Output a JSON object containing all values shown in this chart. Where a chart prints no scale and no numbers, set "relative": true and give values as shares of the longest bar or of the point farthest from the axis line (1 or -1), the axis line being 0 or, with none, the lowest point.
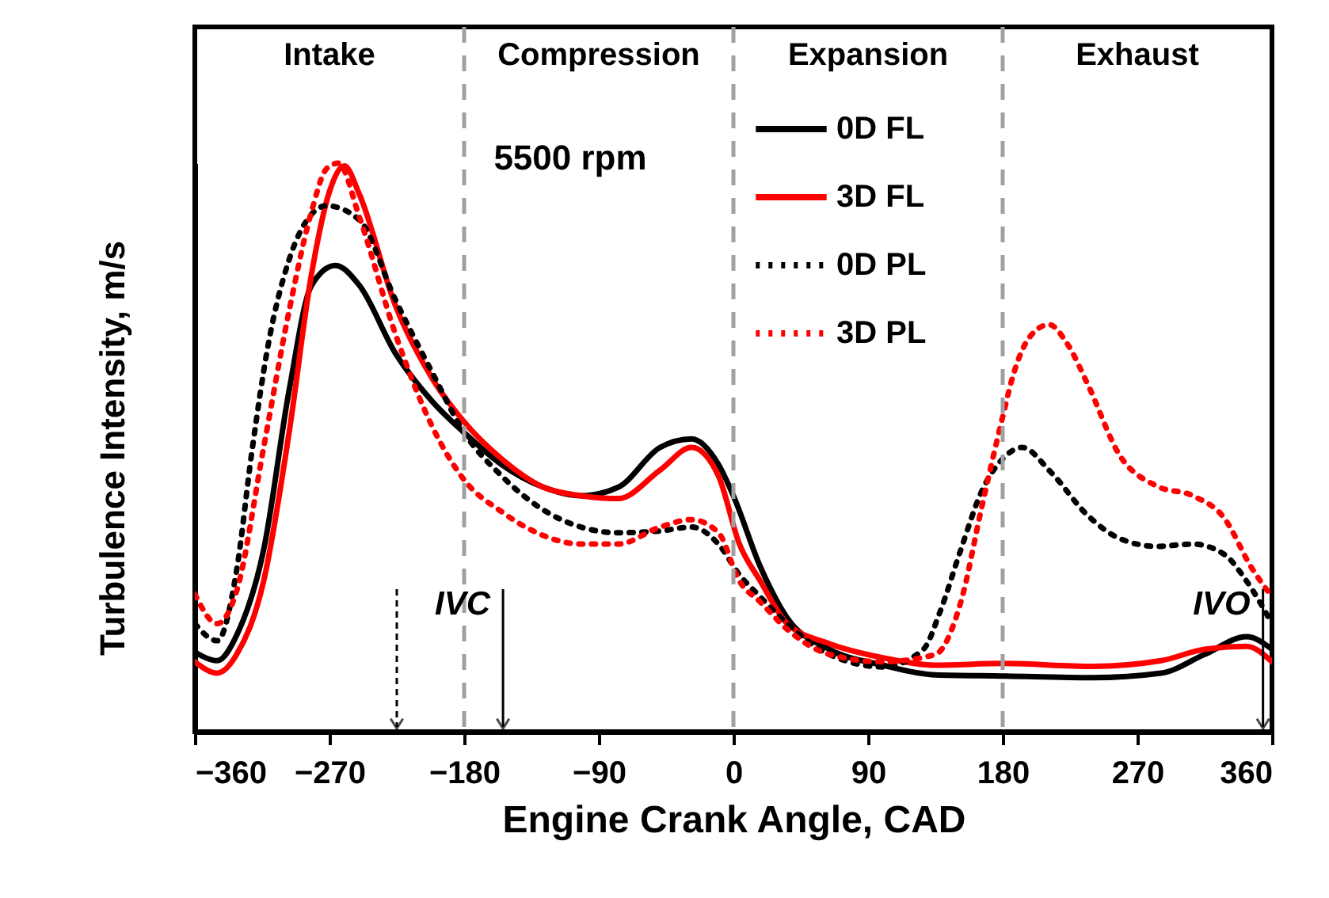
{
  "chart_data": {
    "type": "line",
    "relative": true,
    "xlabel": "Engine Crank Angle, CAD",
    "ylabel": "Turbulence Intensity, m/s",
    "xlim": [
      -360,
      360
    ],
    "xticks": [
      -360,
      -270,
      -180,
      -90,
      0,
      90,
      180,
      270,
      360
    ],
    "legend": "top",
    "grid": false,
    "annotations": [
      "Intake",
      "Compression",
      "Expansion",
      "Exhaust",
      "5500 rpm"
    ],
    "ref_lines": [
      {
        "axis": "x",
        "value": -180,
        "color": "#a0a0a0",
        "line_style": "dashed"
      },
      {
        "axis": "x",
        "value": 0,
        "color": "#a0a0a0",
        "line_style": "dashed"
      },
      {
        "axis": "x",
        "value": 180,
        "color": "#a0a0a0",
        "line_style": "dashed"
      },
      {
        "axis": "x",
        "value": -225,
        "color": "#000000",
        "line_style": "dashed"
      },
      {
        "axis": "x",
        "value": -154,
        "color": "#000000",
        "line_style": "solid",
        "label": "IVC"
      },
      {
        "axis": "x",
        "value": 354,
        "color": "#000000",
        "line_style": "solid",
        "label": "IVO"
      }
    ],
    "series": [
      {
        "name": "0D FL",
        "color": "#000000",
        "line_style": "solid",
        "x": [
          -360,
          -345,
          -332,
          -314,
          -297,
          -282,
          -266,
          -250,
          -226,
          -201,
          -180,
          -155,
          -127,
          -102,
          -77,
          -49,
          -28,
          -10,
          0,
          18,
          36,
          64,
          100,
          135,
          180,
          240,
          286,
          315,
          343,
          360
        ],
        "values": [
          0.14,
          0.125,
          0.17,
          0.32,
          0.6,
          0.785,
          0.82,
          0.785,
          0.666,
          0.58,
          0.526,
          0.47,
          0.43,
          0.415,
          0.43,
          0.5,
          0.515,
          0.47,
          0.415,
          0.29,
          0.2,
          0.145,
          0.117,
          0.1,
          0.098,
          0.095,
          0.103,
          0.136,
          0.167,
          0.145
        ]
      },
      {
        "name": "3D FL",
        "color": "#ff0000",
        "line_style": "solid",
        "x": [
          -360,
          -345,
          -332,
          -314,
          -297,
          -282,
          -270,
          -260,
          -250,
          -226,
          -201,
          -180,
          -155,
          -127,
          -102,
          -77,
          -49,
          -28,
          -10,
          4,
          18,
          36,
          64,
          100,
          135,
          180,
          240,
          286,
          315,
          343,
          360
        ],
        "values": [
          0.123,
          0.103,
          0.136,
          0.265,
          0.526,
          0.805,
          0.95,
          0.995,
          0.945,
          0.75,
          0.62,
          0.545,
          0.48,
          0.43,
          0.415,
          0.41,
          0.46,
          0.5,
          0.45,
          0.33,
          0.265,
          0.19,
          0.155,
          0.13,
          0.117,
          0.12,
          0.115,
          0.125,
          0.145,
          0.15,
          0.123
        ]
      },
      {
        "name": "0D PL",
        "color": "#000000",
        "line_style": "dotted",
        "x": [
          -360,
          -345,
          -332,
          -322,
          -311,
          -297,
          -282,
          -272,
          -250,
          -226,
          -201,
          -180,
          -155,
          -127,
          -102,
          -77,
          -49,
          -28,
          -10,
          4,
          18,
          36,
          64,
          100,
          127,
          138,
          152,
          166,
          180,
          193,
          212,
          237,
          258,
          283,
          307,
          328,
          343,
          360
        ],
        "values": [
          0.19,
          0.16,
          0.285,
          0.49,
          0.68,
          0.83,
          0.91,
          0.925,
          0.9,
          0.76,
          0.63,
          0.526,
          0.45,
          0.39,
          0.36,
          0.35,
          0.353,
          0.36,
          0.33,
          0.276,
          0.237,
          0.19,
          0.136,
          0.114,
          0.145,
          0.21,
          0.32,
          0.423,
          0.48,
          0.5,
          0.457,
          0.38,
          0.34,
          0.326,
          0.33,
          0.312,
          0.265,
          0.19
        ]
      },
      {
        "name": "3D PL",
        "color": "#ff0000",
        "line_style": "dotted",
        "x": [
          -360,
          -345,
          -332,
          -314,
          -297,
          -282,
          -272,
          -264,
          -250,
          -226,
          -201,
          -180,
          -155,
          -127,
          -102,
          -77,
          -49,
          -28,
          -10,
          4,
          18,
          36,
          64,
          100,
          135,
          152,
          166,
          180,
          187,
          198,
          211,
          223,
          237,
          258,
          283,
          307,
          328,
          346,
          360
        ],
        "values": [
          0.242,
          0.19,
          0.248,
          0.5,
          0.74,
          0.915,
          0.99,
          1,
          0.905,
          0.7,
          0.535,
          0.443,
          0.387,
          0.345,
          0.33,
          0.33,
          0.36,
          0.373,
          0.35,
          0.265,
          0.228,
          0.18,
          0.136,
          0.123,
          0.136,
          0.228,
          0.395,
          0.554,
          0.627,
          0.694,
          0.716,
          0.683,
          0.61,
          0.487,
          0.432,
          0.415,
          0.376,
          0.29,
          0.237
        ]
      }
    ]
  }
}
